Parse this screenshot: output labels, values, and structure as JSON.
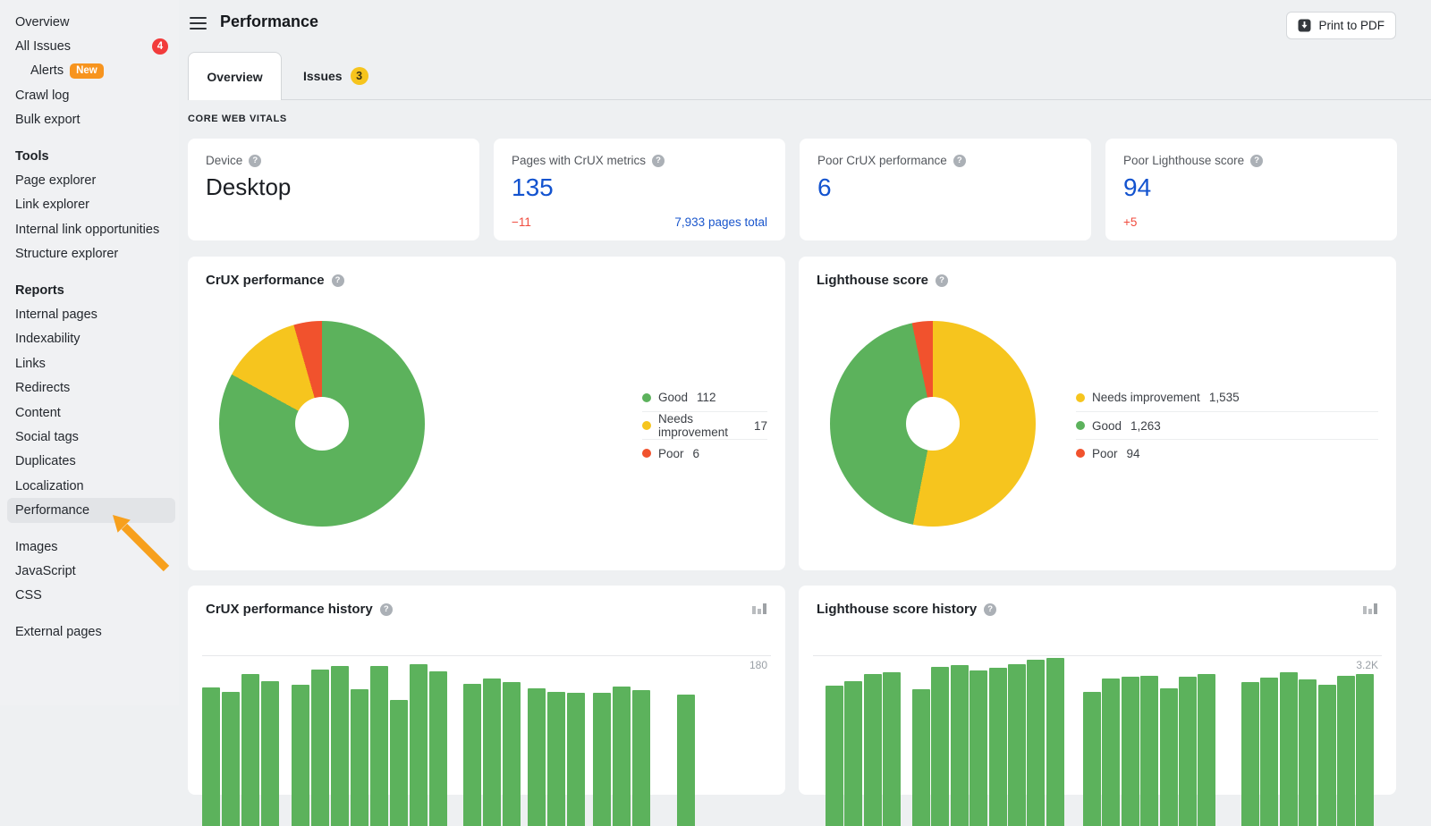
{
  "sidebar": {
    "items": [
      {
        "label": "Overview"
      },
      {
        "label": "All Issues",
        "badge": "4"
      },
      {
        "label": "Alerts",
        "indent": true,
        "tag": "New"
      },
      {
        "label": "Crawl log"
      },
      {
        "label": "Bulk export"
      },
      {
        "label": "Tools",
        "type": "header",
        "gap_before": true
      },
      {
        "label": "Page explorer"
      },
      {
        "label": "Link explorer"
      },
      {
        "label": "Internal link opportunities"
      },
      {
        "label": "Structure explorer"
      },
      {
        "label": "Reports",
        "type": "header",
        "gap_before": true
      },
      {
        "label": "Internal pages"
      },
      {
        "label": "Indexability"
      },
      {
        "label": "Links"
      },
      {
        "label": "Redirects"
      },
      {
        "label": "Content"
      },
      {
        "label": "Social tags"
      },
      {
        "label": "Duplicates"
      },
      {
        "label": "Localization"
      },
      {
        "label": "Performance",
        "active": true
      },
      {
        "label": "Images",
        "gap_before": true
      },
      {
        "label": "JavaScript"
      },
      {
        "label": "CSS"
      },
      {
        "label": "External pages",
        "gap_before": true
      }
    ],
    "badge_color": "#f23b3b",
    "tag_color": "#f7941e"
  },
  "header": {
    "title": "Performance",
    "print_button_label": "Print to PDF"
  },
  "tabs": [
    {
      "label": "Overview",
      "active": true
    },
    {
      "label": "Issues",
      "badge": "3"
    }
  ],
  "section_label": "CORE WEB VITALS",
  "stat_cards": [
    {
      "label": "Device",
      "value": "Desktop"
    },
    {
      "label": "Pages with CrUX metrics",
      "value": "135",
      "delta": "−11",
      "note": "7,933 pages total"
    },
    {
      "label": "Poor CrUX performance",
      "value": "6"
    },
    {
      "label": "Poor Lighthouse score",
      "value": "94",
      "delta": "+5"
    }
  ],
  "colors": {
    "good": "#5cb25c",
    "needs_improvement": "#f6c51e",
    "poor": "#f1522d",
    "value_blue": "#1353cf",
    "delta_red": "#f04b3e"
  },
  "chart_data": [
    {
      "type": "pie",
      "title": "CrUX performance",
      "legend_position": "right",
      "series": [
        {
          "name": "Good",
          "value": 112,
          "display": "112",
          "color": "#5cb25c"
        },
        {
          "name": "Needs improvement",
          "value": 17,
          "display": "17",
          "color": "#f6c51e"
        },
        {
          "name": "Poor",
          "value": 6,
          "display": "6",
          "color": "#f1522d"
        }
      ]
    },
    {
      "type": "pie",
      "title": "Lighthouse score",
      "legend_position": "right",
      "series": [
        {
          "name": "Needs improvement",
          "value": 1535,
          "display": "1,535",
          "color": "#f6c51e"
        },
        {
          "name": "Good",
          "value": 1263,
          "display": "1,263",
          "color": "#5cb25c"
        },
        {
          "name": "Poor",
          "value": 94,
          "display": "94",
          "color": "#f1522d"
        }
      ]
    },
    {
      "type": "bar",
      "title": "CrUX performance history",
      "axis_label": "180",
      "gridline_value": 180,
      "bar_color": "#5cb25c",
      "grid": "single-horizontal-line",
      "note": "bars clipped at bottom of viewport; values estimated from 180 gridline",
      "groups": [
        [
          122,
          114,
          146,
          133
        ],
        [
          127,
          154,
          161,
          119,
          161,
          100,
          164,
          151
        ],
        [
          129,
          138,
          132
        ],
        [
          121,
          114,
          113
        ],
        [
          113,
          124,
          117
        ],
        [
          109
        ]
      ]
    },
    {
      "type": "bar",
      "title": "Lighthouse score history",
      "axis_label": "3.2K",
      "gridline_value": 3200,
      "bar_color": "#5cb25c",
      "grid": "single-horizontal-line",
      "note": "bars clipped at bottom of viewport; values estimated from 3.2K gridline",
      "groups": [
        [
          2230,
          2370,
          2600,
          2660
        ],
        [
          2110,
          2830,
          2890,
          2710,
          2800,
          2910,
          3060,
          3110
        ],
        [
          2030,
          2460,
          2510,
          2540,
          2140,
          2510,
          2600
        ],
        [
          2340,
          2490,
          2660,
          2430,
          2260,
          2540,
          2600
        ]
      ]
    }
  ]
}
